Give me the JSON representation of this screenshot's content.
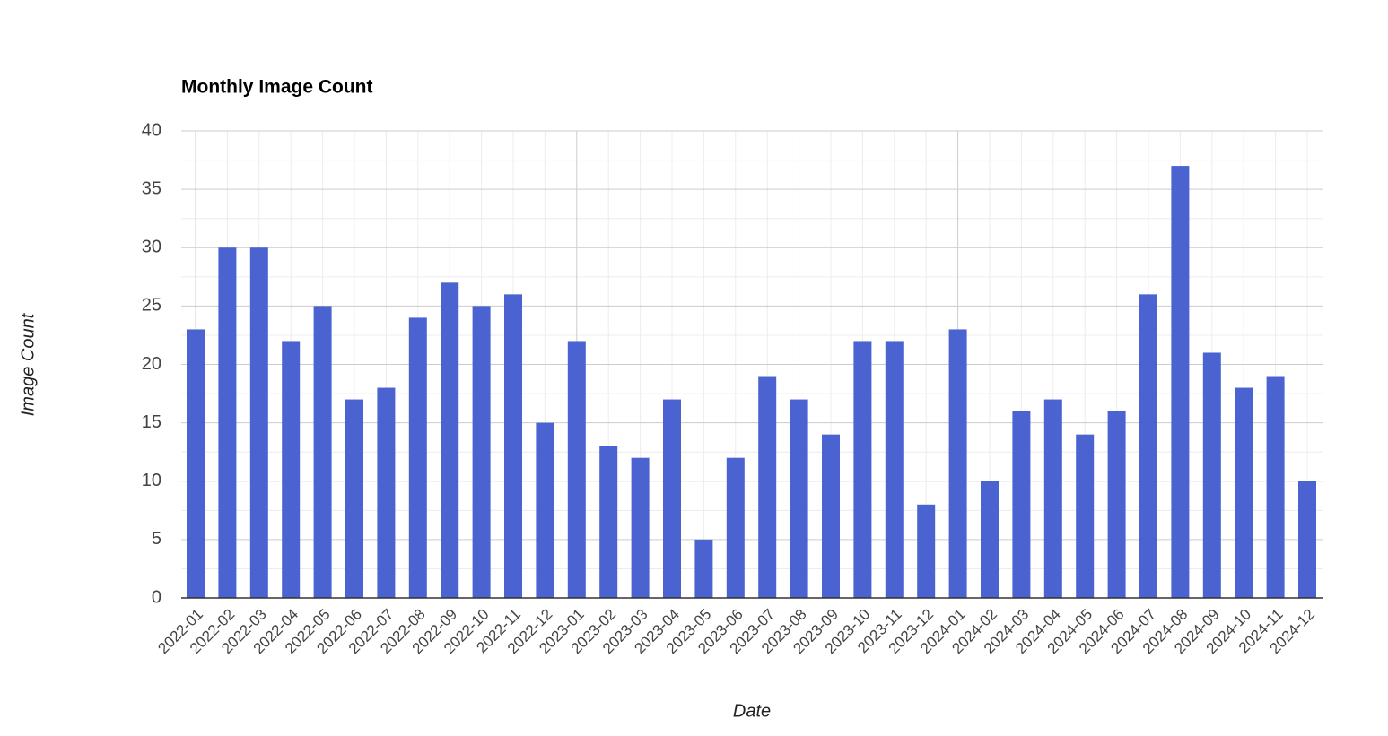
{
  "chart_data": {
    "type": "bar",
    "title": "Monthly Image Count",
    "x_label": "Date",
    "y_label": "Image Count",
    "categories": [
      "2022-01",
      "2022-02",
      "2022-03",
      "2022-04",
      "2022-05",
      "2022-06",
      "2022-07",
      "2022-08",
      "2022-09",
      "2022-10",
      "2022-11",
      "2022-12",
      "2023-01",
      "2023-02",
      "2023-03",
      "2023-04",
      "2023-05",
      "2023-06",
      "2023-07",
      "2023-08",
      "2023-09",
      "2023-10",
      "2023-11",
      "2023-12",
      "2024-01",
      "2024-02",
      "2024-03",
      "2024-04",
      "2024-05",
      "2024-06",
      "2024-07",
      "2024-08",
      "2024-09",
      "2024-10",
      "2024-11",
      "2024-12"
    ],
    "values": [
      23,
      30,
      30,
      22,
      25,
      17,
      18,
      24,
      27,
      25,
      26,
      15,
      22,
      13,
      12,
      17,
      5,
      12,
      19,
      17,
      14,
      22,
      22,
      8,
      23,
      10,
      16,
      17,
      14,
      16,
      26,
      37,
      21,
      18,
      19,
      10
    ],
    "color": "#4a63d0",
    "ylim": [
      0,
      40
    ],
    "yticks": [
      0,
      5,
      10,
      15,
      20,
      25,
      30,
      35,
      40
    ],
    "grid": true
  }
}
